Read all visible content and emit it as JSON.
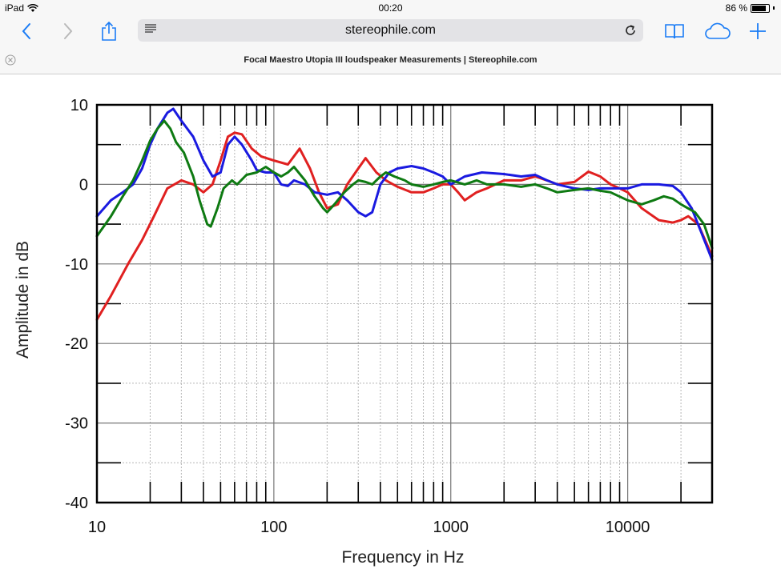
{
  "status": {
    "device": "iPad",
    "time": "00:20",
    "battery": "86 %",
    "battery_level": 0.86
  },
  "toolbar": {
    "url": "stereophile.com"
  },
  "tab": {
    "title": "Focal Maestro Utopia III loudspeaker Measurements | Stereophile.com"
  },
  "chart_data": {
    "type": "line",
    "xlabel": "Frequency in Hz",
    "ylabel": "Amplitude in dB",
    "xscale": "log",
    "xlim": [
      10,
      30000
    ],
    "ylim": [
      -40,
      10
    ],
    "xticks": [
      10,
      100,
      1000,
      10000
    ],
    "xtick_labels": [
      "10",
      "100",
      "1000",
      "10000"
    ],
    "yticks": [
      10,
      0,
      -10,
      -20,
      -30,
      -40
    ],
    "ytick_labels": [
      "10",
      "0",
      "-10",
      "-20",
      "-30",
      "-40"
    ],
    "grid": true,
    "series": [
      {
        "color": "#e02020",
        "points": [
          [
            10,
            -17
          ],
          [
            12,
            -14
          ],
          [
            15,
            -10
          ],
          [
            18,
            -7
          ],
          [
            21,
            -4
          ],
          [
            25,
            -0.5
          ],
          [
            30,
            0.5
          ],
          [
            35,
            0
          ],
          [
            40,
            -1
          ],
          [
            45,
            0
          ],
          [
            50,
            3
          ],
          [
            55,
            6
          ],
          [
            60,
            6.5
          ],
          [
            66,
            6.3
          ],
          [
            75,
            4.5
          ],
          [
            85,
            3.5
          ],
          [
            100,
            3
          ],
          [
            120,
            2.5
          ],
          [
            140,
            4.5
          ],
          [
            160,
            2
          ],
          [
            180,
            -1
          ],
          [
            200,
            -3
          ],
          [
            230,
            -2.5
          ],
          [
            260,
            0
          ],
          [
            300,
            2
          ],
          [
            330,
            3.3
          ],
          [
            380,
            1.5
          ],
          [
            430,
            0.5
          ],
          [
            500,
            -0.3
          ],
          [
            600,
            -1
          ],
          [
            700,
            -1
          ],
          [
            800,
            -0.5
          ],
          [
            900,
            0
          ],
          [
            1000,
            0
          ],
          [
            1100,
            -1
          ],
          [
            1200,
            -2
          ],
          [
            1400,
            -1
          ],
          [
            1600,
            -0.5
          ],
          [
            2000,
            0.5
          ],
          [
            2500,
            0.5
          ],
          [
            3000,
            1
          ],
          [
            3500,
            0.5
          ],
          [
            4000,
            0
          ],
          [
            5000,
            0.3
          ],
          [
            6000,
            1.6
          ],
          [
            7000,
            1
          ],
          [
            8000,
            0
          ],
          [
            9000,
            -0.5
          ],
          [
            10000,
            -1
          ],
          [
            12000,
            -3
          ],
          [
            15000,
            -4.5
          ],
          [
            18000,
            -4.8
          ],
          [
            20000,
            -4.5
          ],
          [
            22000,
            -4
          ],
          [
            25000,
            -5
          ],
          [
            30000,
            -9
          ]
        ]
      },
      {
        "color": "#1a1ae0",
        "points": [
          [
            10,
            -4
          ],
          [
            12,
            -2
          ],
          [
            14,
            -1
          ],
          [
            16,
            0
          ],
          [
            18,
            2
          ],
          [
            20,
            5
          ],
          [
            22,
            7
          ],
          [
            25,
            9
          ],
          [
            27,
            9.5
          ],
          [
            30,
            8
          ],
          [
            35,
            6
          ],
          [
            40,
            3
          ],
          [
            45,
            1
          ],
          [
            50,
            1.5
          ],
          [
            55,
            5
          ],
          [
            60,
            6
          ],
          [
            66,
            5
          ],
          [
            75,
            3
          ],
          [
            80,
            1.8
          ],
          [
            90,
            1.5
          ],
          [
            100,
            1.5
          ],
          [
            110,
            0
          ],
          [
            120,
            -0.2
          ],
          [
            130,
            0.5
          ],
          [
            150,
            0
          ],
          [
            170,
            -1
          ],
          [
            200,
            -1.3
          ],
          [
            230,
            -1
          ],
          [
            260,
            -2
          ],
          [
            300,
            -3.5
          ],
          [
            330,
            -4
          ],
          [
            360,
            -3.5
          ],
          [
            400,
            0
          ],
          [
            450,
            1.5
          ],
          [
            500,
            2
          ],
          [
            600,
            2.3
          ],
          [
            700,
            2
          ],
          [
            800,
            1.5
          ],
          [
            900,
            1
          ],
          [
            1000,
            0
          ],
          [
            1200,
            1
          ],
          [
            1500,
            1.5
          ],
          [
            2000,
            1.3
          ],
          [
            2500,
            1
          ],
          [
            3000,
            1.2
          ],
          [
            3500,
            0.5
          ],
          [
            4000,
            0
          ],
          [
            5000,
            -0.5
          ],
          [
            6000,
            -0.7
          ],
          [
            7000,
            -0.5
          ],
          [
            8000,
            -0.5
          ],
          [
            10000,
            -0.5
          ],
          [
            12000,
            0
          ],
          [
            15000,
            0
          ],
          [
            18000,
            -0.2
          ],
          [
            20000,
            -1
          ],
          [
            23000,
            -3
          ],
          [
            26000,
            -6
          ],
          [
            30000,
            -9.5
          ]
        ]
      },
      {
        "color": "#0e7a12",
        "points": [
          [
            10,
            -6.5
          ],
          [
            12,
            -4
          ],
          [
            14,
            -1.5
          ],
          [
            16,
            0.5
          ],
          [
            18,
            3
          ],
          [
            20,
            5.5
          ],
          [
            22,
            7
          ],
          [
            24,
            8
          ],
          [
            26,
            7
          ],
          [
            28,
            5.3
          ],
          [
            31,
            4
          ],
          [
            35,
            1
          ],
          [
            38,
            -2
          ],
          [
            42,
            -5
          ],
          [
            44,
            -5.3
          ],
          [
            48,
            -3
          ],
          [
            52,
            -0.5
          ],
          [
            58,
            0.5
          ],
          [
            62,
            0
          ],
          [
            70,
            1.2
          ],
          [
            80,
            1.5
          ],
          [
            90,
            2.2
          ],
          [
            100,
            1.5
          ],
          [
            110,
            1
          ],
          [
            120,
            1.5
          ],
          [
            130,
            2.2
          ],
          [
            150,
            0.5
          ],
          [
            170,
            -1.5
          ],
          [
            190,
            -3
          ],
          [
            200,
            -3.5
          ],
          [
            220,
            -2.5
          ],
          [
            250,
            -1
          ],
          [
            280,
            0
          ],
          [
            300,
            0.5
          ],
          [
            330,
            0.3
          ],
          [
            360,
            0
          ],
          [
            400,
            1
          ],
          [
            430,
            1.5
          ],
          [
            480,
            1
          ],
          [
            550,
            0.5
          ],
          [
            600,
            0
          ],
          [
            700,
            -0.3
          ],
          [
            800,
            0
          ],
          [
            900,
            0.3
          ],
          [
            1000,
            0.5
          ],
          [
            1200,
            0
          ],
          [
            1400,
            0.5
          ],
          [
            1600,
            0
          ],
          [
            2000,
            0
          ],
          [
            2500,
            -0.3
          ],
          [
            3000,
            0
          ],
          [
            3500,
            -0.5
          ],
          [
            4000,
            -1
          ],
          [
            5000,
            -0.7
          ],
          [
            6000,
            -0.5
          ],
          [
            7000,
            -0.8
          ],
          [
            8000,
            -1
          ],
          [
            10000,
            -2
          ],
          [
            12000,
            -2.5
          ],
          [
            14000,
            -2
          ],
          [
            16000,
            -1.5
          ],
          [
            18000,
            -1.8
          ],
          [
            20000,
            -2.5
          ],
          [
            24000,
            -3.5
          ],
          [
            27000,
            -5
          ],
          [
            30000,
            -8
          ]
        ]
      }
    ]
  }
}
